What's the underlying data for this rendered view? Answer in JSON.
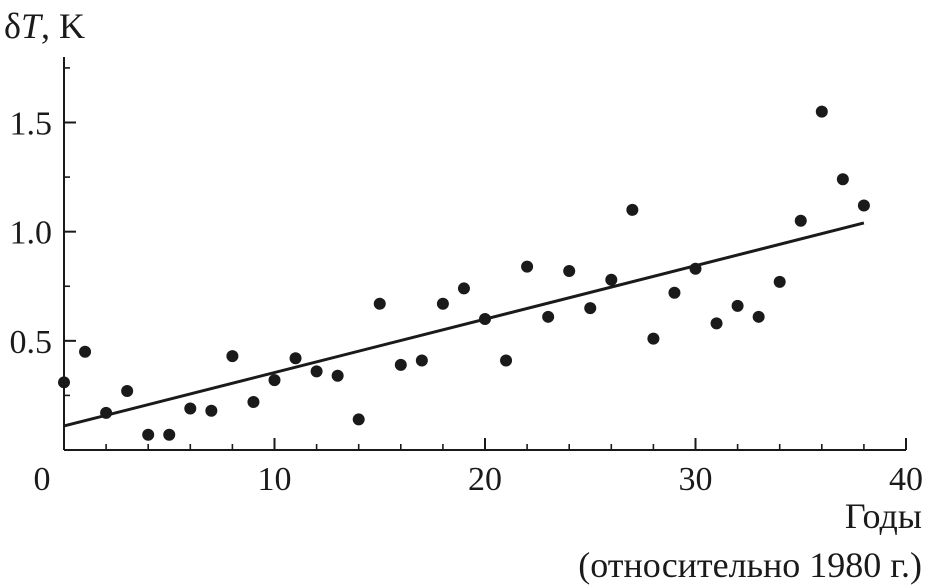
{
  "chart_data": {
    "type": "scatter",
    "ylabel_symbol": "δ",
    "ylabel_var": "T",
    "ylabel_unit": ", K",
    "xlabel_line1": "Годы",
    "xlabel_line2": "(относительно 1980 г.)",
    "xlim": [
      0,
      40
    ],
    "ylim": [
      0,
      1.8
    ],
    "xticks": [
      0,
      10,
      20,
      30,
      40
    ],
    "xtick_labels": [
      "0",
      "10",
      "20",
      "30",
      "40"
    ],
    "xminor_step": 2,
    "yticks": [
      0.5,
      1.0,
      1.5
    ],
    "ytick_labels": [
      "0.5",
      "1.0",
      "1.5"
    ],
    "yminor_ticks": [
      0.25,
      0.75,
      1.25,
      1.75
    ],
    "grid": false,
    "points": [
      {
        "x": 0,
        "y": 0.31
      },
      {
        "x": 1,
        "y": 0.45
      },
      {
        "x": 2,
        "y": 0.17
      },
      {
        "x": 3,
        "y": 0.27
      },
      {
        "x": 4,
        "y": 0.07
      },
      {
        "x": 5,
        "y": 0.07
      },
      {
        "x": 6,
        "y": 0.19
      },
      {
        "x": 7,
        "y": 0.18
      },
      {
        "x": 8,
        "y": 0.43
      },
      {
        "x": 9,
        "y": 0.22
      },
      {
        "x": 10,
        "y": 0.32
      },
      {
        "x": 11,
        "y": 0.42
      },
      {
        "x": 12,
        "y": 0.36
      },
      {
        "x": 13,
        "y": 0.34
      },
      {
        "x": 14,
        "y": 0.14
      },
      {
        "x": 15,
        "y": 0.67
      },
      {
        "x": 16,
        "y": 0.39
      },
      {
        "x": 17,
        "y": 0.41
      },
      {
        "x": 18,
        "y": 0.67
      },
      {
        "x": 19,
        "y": 0.74
      },
      {
        "x": 20,
        "y": 0.6
      },
      {
        "x": 21,
        "y": 0.41
      },
      {
        "x": 22,
        "y": 0.84
      },
      {
        "x": 23,
        "y": 0.61
      },
      {
        "x": 24,
        "y": 0.82
      },
      {
        "x": 25,
        "y": 0.65
      },
      {
        "x": 26,
        "y": 0.78
      },
      {
        "x": 27,
        "y": 1.1
      },
      {
        "x": 28,
        "y": 0.51
      },
      {
        "x": 29,
        "y": 0.72
      },
      {
        "x": 30,
        "y": 0.83
      },
      {
        "x": 31,
        "y": 0.58
      },
      {
        "x": 32,
        "y": 0.66
      },
      {
        "x": 33,
        "y": 0.61
      },
      {
        "x": 34,
        "y": 0.77
      },
      {
        "x": 35,
        "y": 1.05
      },
      {
        "x": 36,
        "y": 1.55
      },
      {
        "x": 37,
        "y": 1.24
      },
      {
        "x": 38,
        "y": 1.12
      }
    ],
    "trend_line": {
      "x": [
        0,
        38
      ],
      "y": [
        0.11,
        1.04
      ]
    },
    "colors": {
      "ink": "#1a1a1a",
      "background": "#ffffff"
    }
  }
}
